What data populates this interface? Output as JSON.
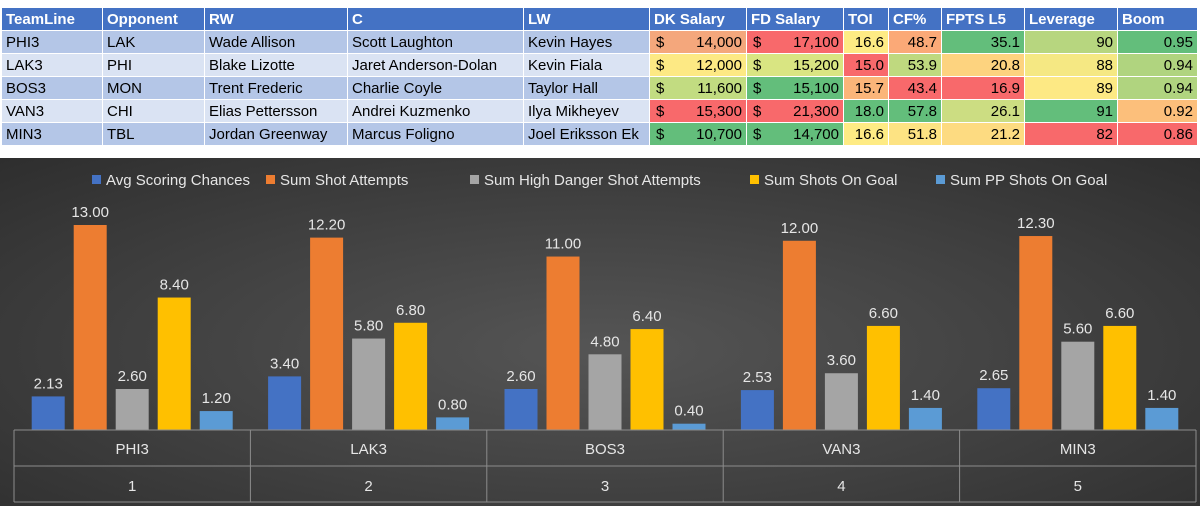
{
  "table": {
    "headers": [
      "TeamLine",
      "Opponent",
      "RW",
      "C",
      "LW",
      "DK Salary",
      "FD Salary",
      "TOI",
      "CF%",
      "FPTS L5",
      "Leverage",
      "Boom"
    ],
    "rows": [
      {
        "cells": [
          "PHI3",
          "LAK",
          "Wade Allison",
          "Scott Laughton",
          "Kevin Hayes",
          "14,000",
          "17,100",
          "16.6",
          "48.7",
          "35.1",
          "90",
          "0.95"
        ],
        "colors": {
          "dk": "#f4a77c",
          "fd": "#f8696b",
          "toi": "#feeb84",
          "cf": "#fba977",
          "fpts": "#63be7b",
          "lev": "#b7d67f",
          "boom": "#63be7b"
        }
      },
      {
        "cells": [
          "LAK3",
          "PHI",
          "Blake Lizotte",
          "Jaret Anderson-Dolan",
          "Kevin Fiala",
          "12,000",
          "15,200",
          "15.0",
          "53.9",
          "20.8",
          "88",
          "0.94"
        ],
        "colors": {
          "dk": "#fde984",
          "fd": "#d9e582",
          "toi": "#f8696b",
          "cf": "#bfd97f",
          "fpts": "#fdd37f",
          "lev": "#f5e883",
          "boom": "#b0d47f"
        }
      },
      {
        "cells": [
          "BOS3",
          "MON",
          "Trent Frederic",
          "Charlie Coyle",
          "Taylor Hall",
          "11,600",
          "15,100",
          "15.7",
          "43.4",
          "16.9",
          "89",
          "0.94"
        ],
        "colors": {
          "dk": "#c2dc81",
          "fd": "#63be7b",
          "toi": "#fbb579",
          "cf": "#f8696b",
          "fpts": "#f8696b",
          "lev": "#fde984",
          "boom": "#b0d47f"
        }
      },
      {
        "cells": [
          "VAN3",
          "CHI",
          "Elias Pettersson",
          "Andrei Kuzmenko",
          "Ilya Mikheyev",
          "15,300",
          "21,300",
          "18.0",
          "57.8",
          "26.1",
          "91",
          "0.92"
        ],
        "colors": {
          "dk": "#f8696b",
          "fd": "#f8696b",
          "toi": "#63be7b",
          "cf": "#63be7b",
          "fpts": "#ccdd82",
          "lev": "#63be7b",
          "boom": "#fcbf7b"
        }
      },
      {
        "cells": [
          "MIN3",
          "TBL",
          "Jordan Greenway",
          "Marcus Foligno",
          "Joel Eriksson Ek",
          "10,700",
          "14,700",
          "16.6",
          "51.8",
          "21.2",
          "82",
          "0.86"
        ],
        "colors": {
          "dk": "#63be7b",
          "fd": "#63be7b",
          "toi": "#feeb84",
          "cf": "#fde383",
          "fpts": "#fddb81",
          "lev": "#f8696b",
          "boom": "#f8696b"
        }
      }
    ]
  },
  "chart_data": {
    "type": "bar",
    "categories": [
      "PHI3",
      "LAK3",
      "BOS3",
      "VAN3",
      "MIN3"
    ],
    "category_numbers": [
      "1",
      "2",
      "3",
      "4",
      "5"
    ],
    "series": [
      {
        "name": "Avg Scoring Chances",
        "color": "#4472c4",
        "values": [
          2.13,
          3.4,
          2.6,
          2.53,
          2.65
        ]
      },
      {
        "name": "Sum Shot Attempts",
        "color": "#ed7d31",
        "values": [
          13.0,
          12.2,
          11.0,
          12.0,
          12.3
        ]
      },
      {
        "name": "Sum High Danger Shot Attempts",
        "color": "#a5a5a5",
        "values": [
          2.6,
          5.8,
          4.8,
          3.6,
          5.6
        ]
      },
      {
        "name": "Sum Shots On Goal",
        "color": "#ffc000",
        "values": [
          8.4,
          6.8,
          6.4,
          6.6,
          6.6
        ]
      },
      {
        "name": "Sum PP Shots On Goal",
        "color": "#5b9bd5",
        "values": [
          1.2,
          0.8,
          0.4,
          1.4,
          1.4
        ]
      }
    ],
    "ylim": [
      0,
      13
    ],
    "legend_position": "top",
    "grid": false,
    "data_labels": true
  }
}
